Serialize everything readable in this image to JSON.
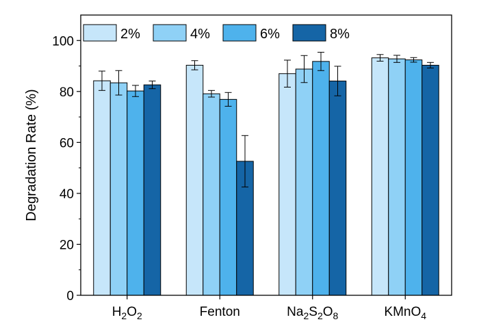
{
  "chart_data": {
    "type": "bar",
    "categories": [
      {
        "base": "H",
        "sub1": "2",
        "mid": "O",
        "sub2": "2",
        "mid2": "",
        "sub3": ""
      },
      {
        "base": "Fenton",
        "sub1": "",
        "mid": "",
        "sub2": "",
        "mid2": "",
        "sub3": ""
      },
      {
        "base": "Na",
        "sub1": "2",
        "mid": "S",
        "sub2": "2",
        "mid2": "O",
        "sub3": "8"
      },
      {
        "base": "KMnO",
        "sub1": "4",
        "mid": "",
        "sub2": "",
        "mid2": "",
        "sub3": ""
      }
    ],
    "series": [
      {
        "name": "2%",
        "color": "#c6e6fa",
        "values": [
          84.2,
          90.3,
          87.0,
          93.2
        ],
        "errors": [
          3.8,
          1.8,
          5.3,
          1.3
        ]
      },
      {
        "name": "4%",
        "color": "#8fd1f6",
        "values": [
          83.4,
          79.1,
          88.8,
          92.8
        ],
        "errors": [
          4.8,
          1.3,
          5.3,
          1.4
        ]
      },
      {
        "name": "6%",
        "color": "#4eb2ec",
        "values": [
          80.2,
          76.9,
          91.8,
          92.4
        ],
        "errors": [
          2.2,
          2.7,
          3.6,
          0.9
        ]
      },
      {
        "name": "8%",
        "color": "#1565a6",
        "values": [
          82.6,
          52.6,
          84.1,
          90.3
        ],
        "errors": [
          1.5,
          10.1,
          5.8,
          1.1
        ]
      }
    ],
    "ylabel": "Degradation Rate (%)",
    "xlabel": "",
    "ylim": [
      0,
      110
    ],
    "yticks": [
      0,
      20,
      40,
      60,
      80,
      100
    ],
    "grid": false,
    "legend_position": "top-left"
  }
}
